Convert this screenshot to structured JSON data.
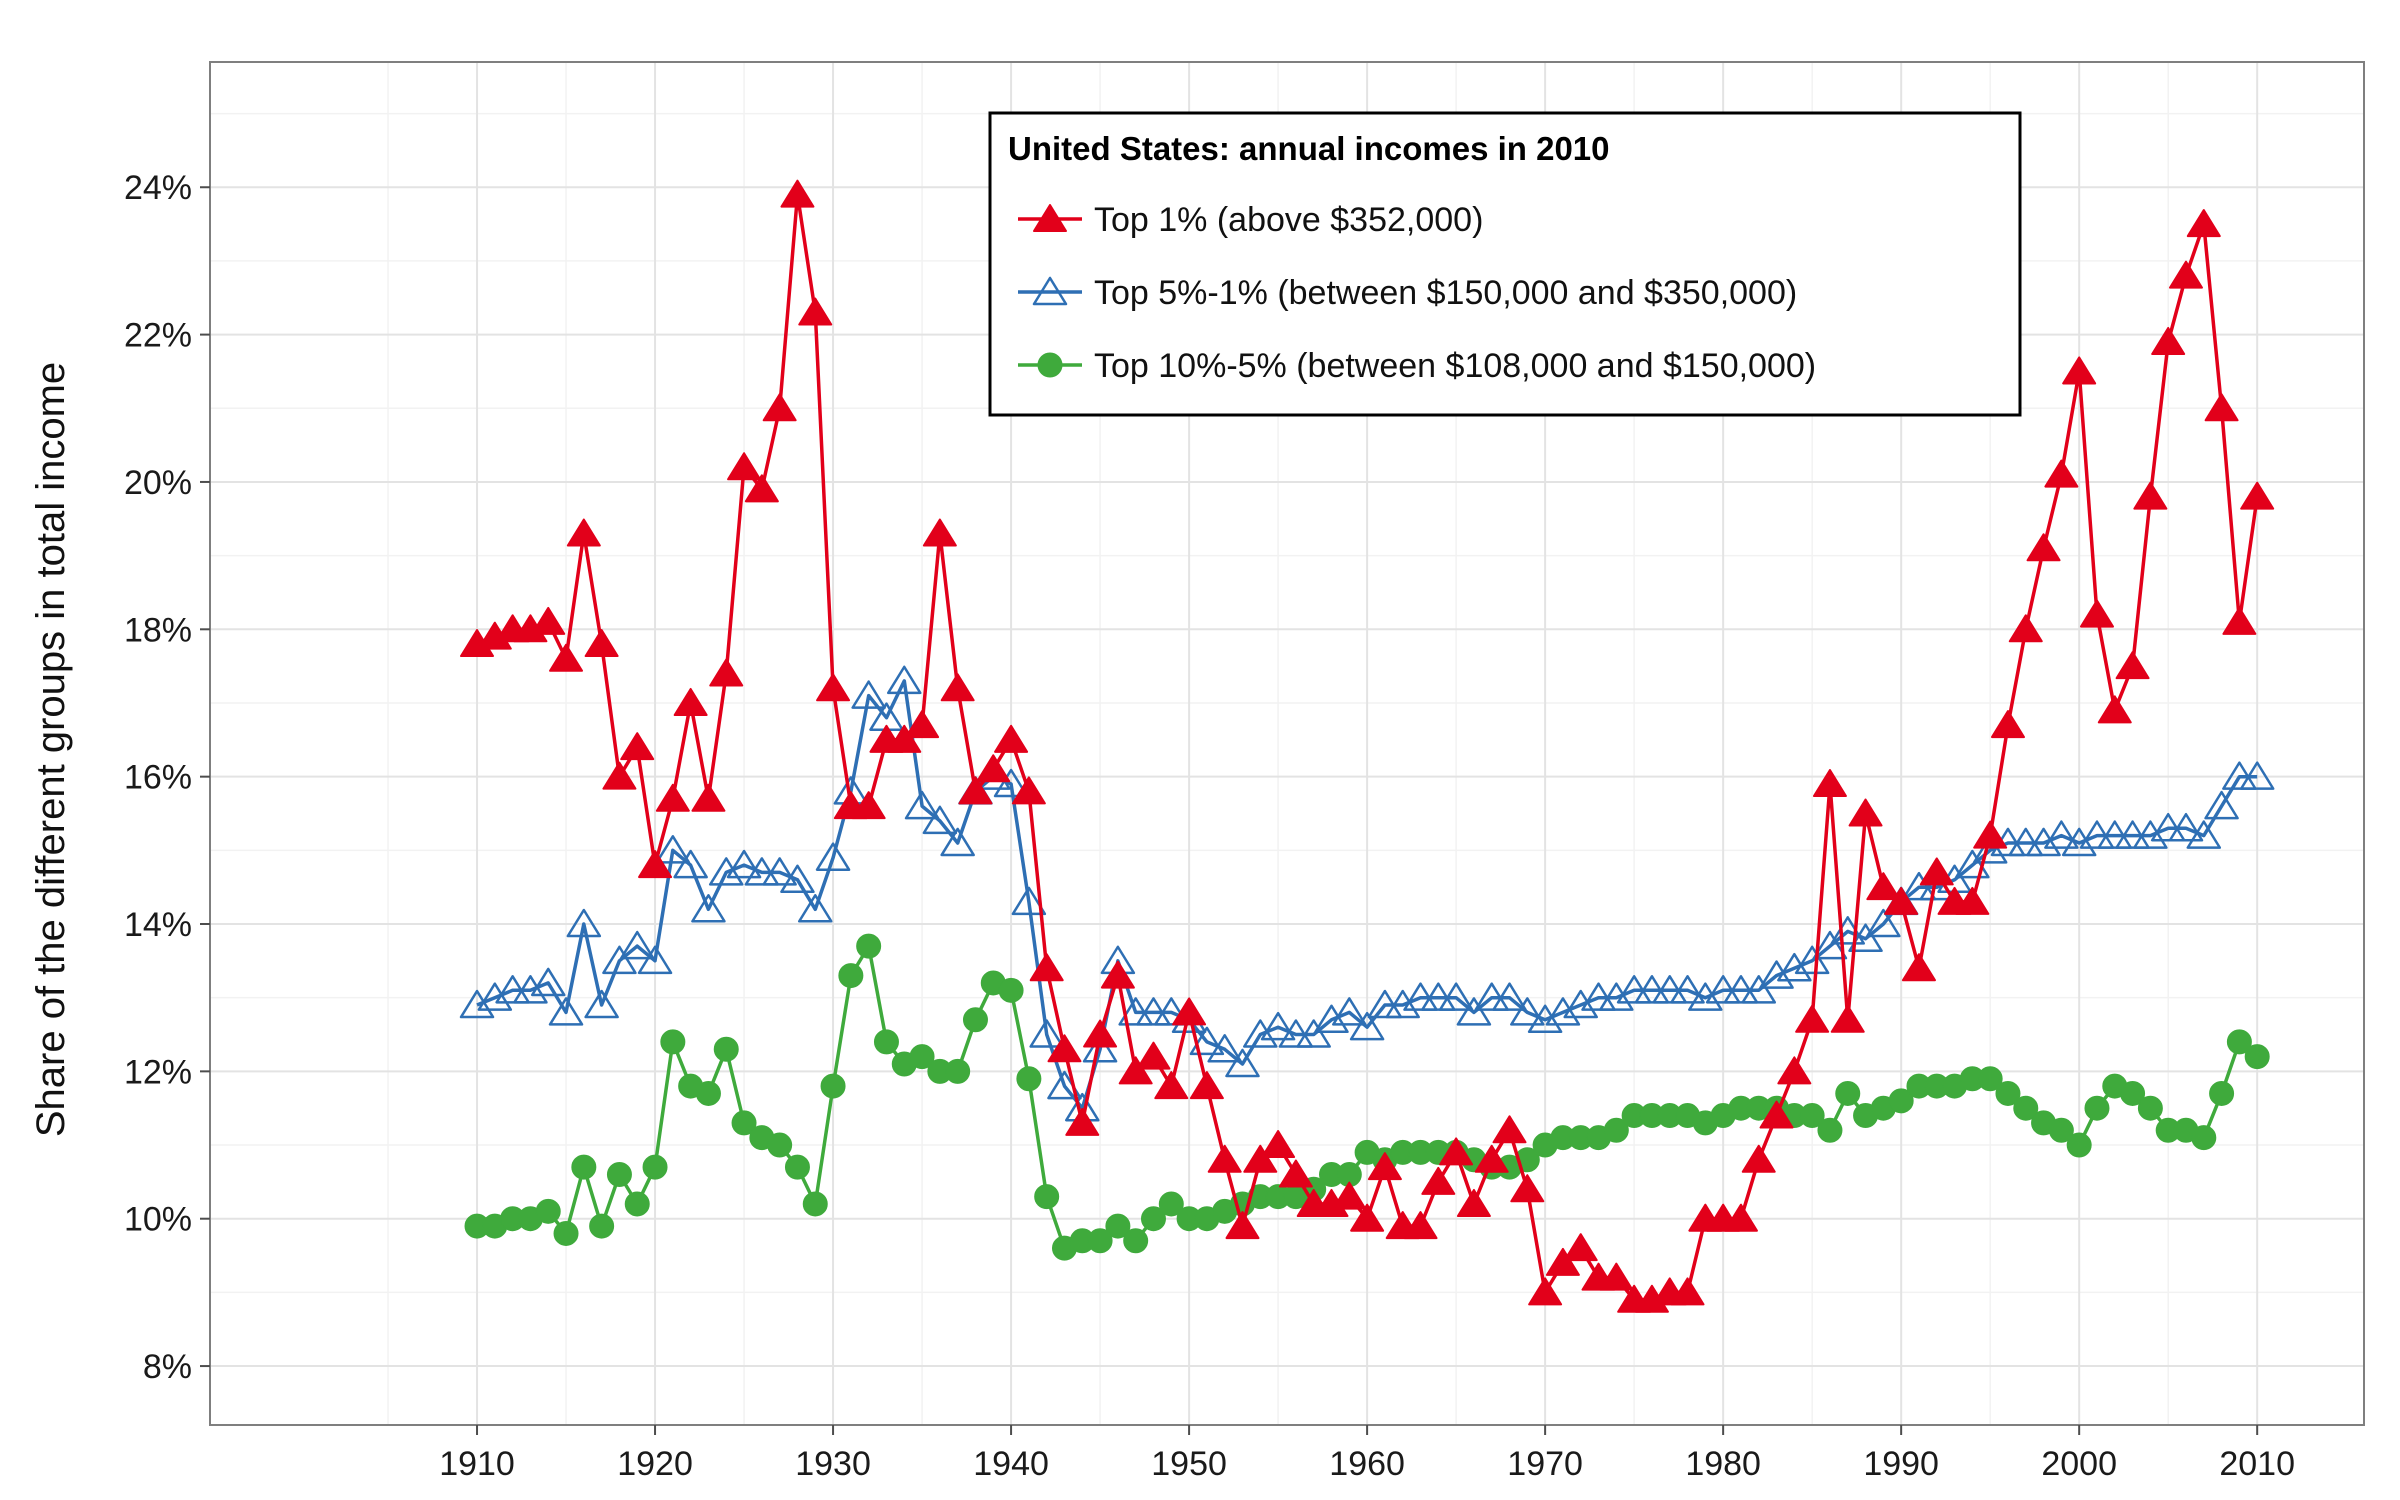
{
  "chart_data": {
    "type": "line",
    "title": "",
    "xlabel": "",
    "ylabel": "Share of the different groups in total income",
    "x_ticks": [
      1910,
      1920,
      1930,
      1940,
      1950,
      1960,
      1970,
      1980,
      1990,
      2000,
      2010
    ],
    "y_ticks": [
      0.08,
      0.1,
      0.12,
      0.14,
      0.16,
      0.18,
      0.2,
      0.22,
      0.24
    ],
    "y_tick_labels": [
      "8%",
      "10%",
      "12%",
      "14%",
      "16%",
      "18%",
      "20%",
      "22%",
      "24%"
    ],
    "xlim": [
      1895,
      2016
    ],
    "ylim": [
      0.072,
      0.257
    ],
    "grid": true,
    "legend": {
      "title": "United States: annual incomes in 2010",
      "position": "top-center"
    },
    "x": [
      1910,
      1911,
      1912,
      1913,
      1914,
      1915,
      1916,
      1917,
      1918,
      1919,
      1920,
      1921,
      1922,
      1923,
      1924,
      1925,
      1926,
      1927,
      1928,
      1929,
      1930,
      1931,
      1932,
      1933,
      1934,
      1935,
      1936,
      1937,
      1938,
      1939,
      1940,
      1941,
      1942,
      1943,
      1944,
      1945,
      1946,
      1947,
      1948,
      1949,
      1950,
      1951,
      1952,
      1953,
      1954,
      1955,
      1956,
      1957,
      1958,
      1959,
      1960,
      1961,
      1962,
      1963,
      1964,
      1965,
      1966,
      1967,
      1968,
      1969,
      1970,
      1971,
      1972,
      1973,
      1974,
      1975,
      1976,
      1977,
      1978,
      1979,
      1980,
      1981,
      1982,
      1983,
      1984,
      1985,
      1986,
      1987,
      1988,
      1989,
      1990,
      1991,
      1992,
      1993,
      1994,
      1995,
      1996,
      1997,
      1998,
      1999,
      2000,
      2001,
      2002,
      2003,
      2004,
      2005,
      2006,
      2007,
      2008,
      2009,
      2010
    ],
    "series": [
      {
        "name": "Top 1% (above $352,000)",
        "color": "#e2001a",
        "marker": "filled-triangle",
        "values": [
          0.178,
          0.179,
          0.18,
          0.18,
          0.181,
          0.176,
          0.193,
          0.178,
          0.16,
          0.164,
          0.148,
          0.157,
          0.17,
          0.157,
          0.174,
          0.202,
          0.199,
          0.21,
          0.239,
          0.223,
          0.172,
          0.156,
          0.156,
          0.165,
          0.165,
          0.167,
          0.193,
          0.172,
          0.158,
          0.161,
          0.165,
          0.158,
          0.134,
          0.123,
          0.113,
          0.125,
          0.133,
          0.12,
          0.122,
          0.118,
          0.128,
          0.118,
          0.108,
          0.099,
          0.108,
          0.11,
          0.106,
          0.102,
          0.102,
          0.103,
          0.1,
          0.107,
          0.099,
          0.099,
          0.105,
          0.109,
          0.102,
          0.108,
          0.112,
          0.104,
          0.09,
          0.094,
          0.096,
          0.092,
          0.092,
          0.089,
          0.089,
          0.09,
          0.09,
          0.1,
          0.1,
          0.1,
          0.108,
          0.114,
          0.12,
          0.127,
          0.159,
          0.127,
          0.155,
          0.145,
          0.143,
          0.134,
          0.147,
          0.143,
          0.143,
          0.152,
          0.167,
          0.18,
          0.191,
          0.201,
          0.215,
          0.182,
          0.169,
          0.175,
          0.198,
          0.219,
          0.228,
          0.235,
          0.21,
          0.181,
          0.198
        ]
      },
      {
        "name": "Top 5%-1% (between $150,000 and $350,000)",
        "color": "#2e6fb4",
        "marker": "open-triangle",
        "values": [
          0.129,
          0.13,
          0.131,
          0.131,
          0.132,
          0.128,
          0.14,
          0.129,
          0.135,
          0.137,
          0.135,
          0.15,
          0.148,
          0.142,
          0.147,
          0.148,
          0.147,
          0.147,
          0.146,
          0.142,
          0.149,
          0.158,
          0.171,
          0.168,
          0.173,
          0.156,
          0.154,
          0.151,
          0.158,
          0.16,
          0.159,
          0.143,
          0.125,
          0.118,
          0.115,
          0.123,
          0.135,
          0.128,
          0.128,
          0.128,
          0.127,
          0.124,
          0.123,
          0.121,
          0.125,
          0.126,
          0.125,
          0.125,
          0.127,
          0.128,
          0.126,
          0.129,
          0.129,
          0.13,
          0.13,
          0.13,
          0.128,
          0.13,
          0.13,
          0.128,
          0.127,
          0.128,
          0.129,
          0.13,
          0.13,
          0.131,
          0.131,
          0.131,
          0.131,
          0.13,
          0.131,
          0.131,
          0.131,
          0.133,
          0.134,
          0.135,
          0.137,
          0.139,
          0.138,
          0.14,
          0.143,
          0.145,
          0.145,
          0.146,
          0.148,
          0.15,
          0.151,
          0.151,
          0.151,
          0.152,
          0.151,
          0.152,
          0.152,
          0.152,
          0.152,
          0.153,
          0.153,
          0.152,
          0.156,
          0.16,
          0.16
        ]
      },
      {
        "name": "Top 10%-5% (between $108,000 and $150,000)",
        "color": "#3faa3c",
        "marker": "filled-circle",
        "values": [
          0.099,
          0.099,
          0.1,
          0.1,
          0.101,
          0.098,
          0.107,
          0.099,
          0.106,
          0.102,
          0.107,
          0.124,
          0.118,
          0.117,
          0.123,
          0.113,
          0.111,
          0.11,
          0.107,
          0.102,
          0.118,
          0.133,
          0.137,
          0.124,
          0.121,
          0.122,
          0.12,
          0.12,
          0.127,
          0.132,
          0.131,
          0.119,
          0.103,
          0.096,
          0.097,
          0.097,
          0.099,
          0.097,
          0.1,
          0.102,
          0.1,
          0.1,
          0.101,
          0.102,
          0.103,
          0.103,
          0.103,
          0.104,
          0.106,
          0.106,
          0.109,
          0.108,
          0.109,
          0.109,
          0.109,
          0.109,
          0.108,
          0.107,
          0.107,
          0.108,
          0.11,
          0.111,
          0.111,
          0.111,
          0.112,
          0.114,
          0.114,
          0.114,
          0.114,
          0.113,
          0.114,
          0.115,
          0.115,
          0.115,
          0.114,
          0.114,
          0.112,
          0.117,
          0.114,
          0.115,
          0.116,
          0.118,
          0.118,
          0.118,
          0.119,
          0.119,
          0.117,
          0.115,
          0.113,
          0.112,
          0.11,
          0.115,
          0.118,
          0.117,
          0.115,
          0.112,
          0.112,
          0.111,
          0.117,
          0.124,
          0.122
        ]
      }
    ]
  }
}
